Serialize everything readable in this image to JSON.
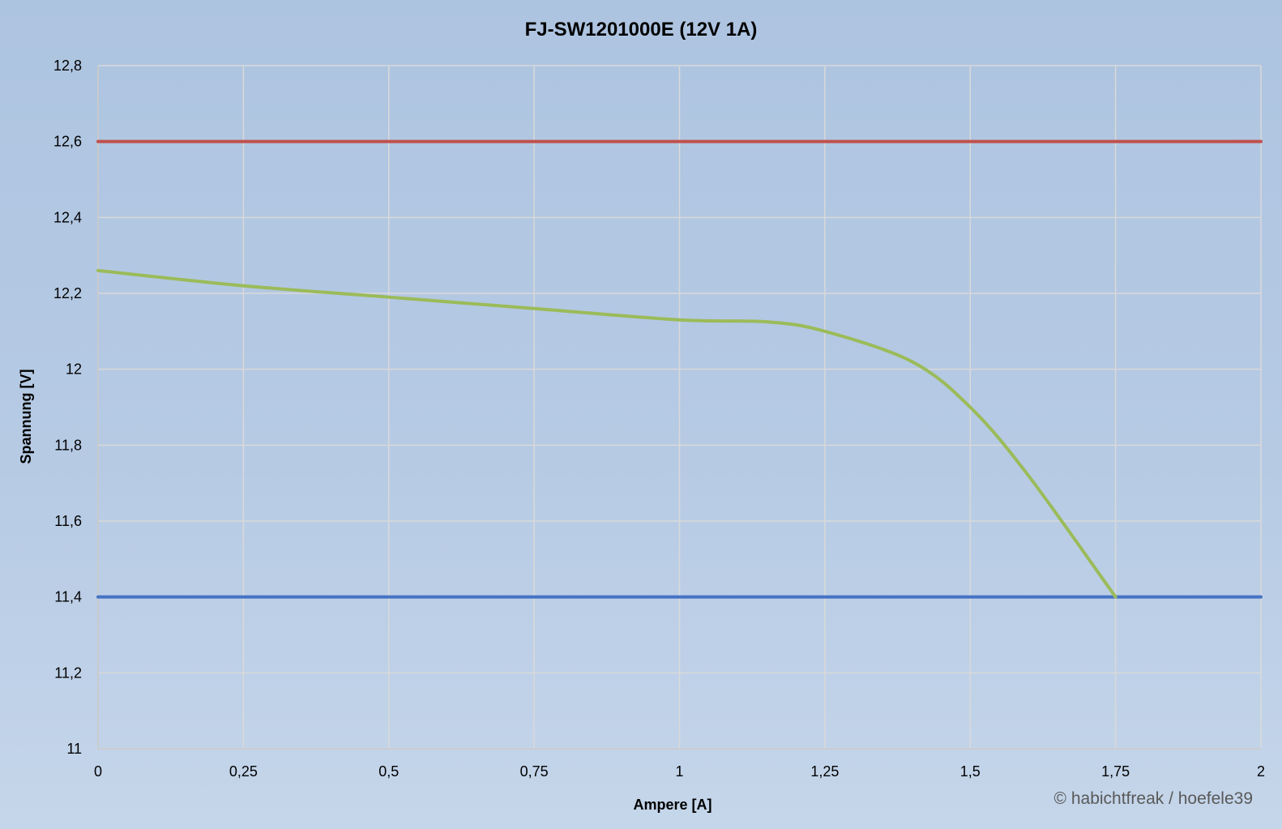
{
  "chart_data": {
    "type": "line",
    "title": "FJ-SW1201000E (12V 1A)",
    "xlabel": "Ampere [A]",
    "ylabel": "Spannung [V]",
    "xlim": [
      0,
      2
    ],
    "ylim": [
      11,
      12.8
    ],
    "x_ticks": [
      0,
      0.25,
      0.5,
      0.75,
      1,
      1.25,
      1.5,
      1.75,
      2
    ],
    "x_tick_labels": [
      "0",
      "0,25",
      "0,5",
      "0,75",
      "1",
      "1,25",
      "1,5",
      "1,75",
      "2"
    ],
    "y_ticks": [
      11,
      11.2,
      11.4,
      11.6,
      11.8,
      12,
      12.2,
      12.4,
      12.6,
      12.8
    ],
    "y_tick_labels": [
      "11",
      "11,2",
      "11,4",
      "11,6",
      "11,8",
      "12",
      "12,2",
      "12,4",
      "12,6",
      "12,8"
    ],
    "grid": true,
    "series": [
      {
        "color": "#ff0000",
        "x": [
          0,
          2
        ],
        "y": [
          12.6,
          12.6
        ]
      },
      {
        "color": "#4472c4",
        "x": [
          0,
          2
        ],
        "y": [
          11.4,
          11.4
        ]
      },
      {
        "color": "#9bbb59",
        "x": [
          0,
          0.25,
          0.5,
          0.75,
          1,
          1.15,
          1.25,
          1.4,
          1.5,
          1.6,
          1.75
        ],
        "y": [
          12.26,
          12.22,
          12.19,
          12.16,
          12.13,
          12.125,
          12.1,
          12.02,
          11.9,
          11.72,
          11.4
        ]
      }
    ]
  },
  "copyright": "© habichtfreak / hoefele39",
  "colors": {
    "background_top": "#adc4e0",
    "background_bottom": "#c5d6ea",
    "grid": "#d9d9d9",
    "copyright_text": "#595959"
  }
}
